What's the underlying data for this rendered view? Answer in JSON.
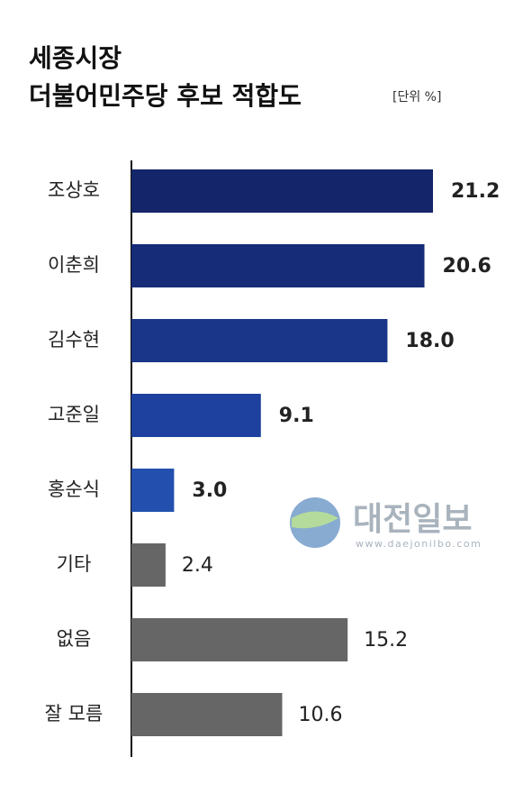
{
  "chart_data": {
    "type": "bar",
    "orientation": "horizontal",
    "title": [
      "세종시장",
      "더불어민주당 후보 적합도"
    ],
    "unit_note": "[단위 %]",
    "watermark": [
      "대전일보",
      "www.daejonilbo.com"
    ],
    "categories": [
      "조상호",
      "이춘희",
      "김수현",
      "고준일",
      "홍순식",
      "기타",
      "없음",
      "잘 모름"
    ],
    "values": [
      21.2,
      20.6,
      18.0,
      9.1,
      3.0,
      2.4,
      15.2,
      10.6
    ],
    "value_labels": [
      "21.2",
      "20.6",
      "18.0",
      "9.1",
      "3.0",
      "2.4",
      "15.2",
      "10.6"
    ],
    "colors": [
      "#142669",
      "#162c78",
      "#1a3688",
      "#1e41a0",
      "#2350ae",
      "#666666",
      "#666666",
      "#666666"
    ]
  }
}
